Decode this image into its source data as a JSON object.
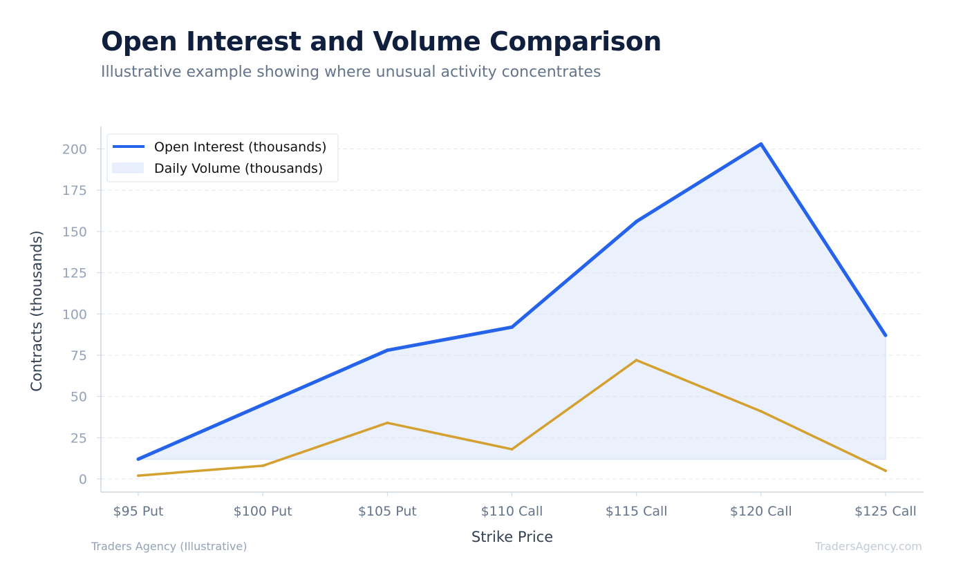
{
  "header": {
    "title": "Open Interest and Volume Comparison",
    "subtitle": "Illustrative example showing where unusual activity concentrates"
  },
  "footer": {
    "left": "Traders Agency (Illustrative)",
    "right": "TradersAgency.com"
  },
  "colors": {
    "open_interest": "#2563eb",
    "volume_line": "#d4a030",
    "volume_fill": "#dbe4fb",
    "grid": "#e5e7eb",
    "axis": "#cbd5e1"
  },
  "chart_data": {
    "type": "line",
    "title": "",
    "xlabel": "Strike Price",
    "ylabel": "Contracts (thousands)",
    "categories": [
      "$95 Put",
      "$100 Put",
      "$105 Put",
      "$110 Call",
      "$115 Call",
      "$120 Call",
      "$125 Call"
    ],
    "ylim": [
      0,
      210
    ],
    "yticks": [
      0,
      25,
      50,
      75,
      100,
      125,
      150,
      175,
      200
    ],
    "grid": true,
    "legend_position": "top-left",
    "series": [
      {
        "name": "Open Interest (thousands)",
        "style": "line",
        "values": [
          12,
          45,
          78,
          92,
          156,
          203,
          87
        ]
      },
      {
        "name": "Daily Volume (thousands)",
        "style": "area-legend",
        "values": [
          2,
          8,
          34,
          18,
          72,
          41,
          5
        ]
      }
    ]
  }
}
